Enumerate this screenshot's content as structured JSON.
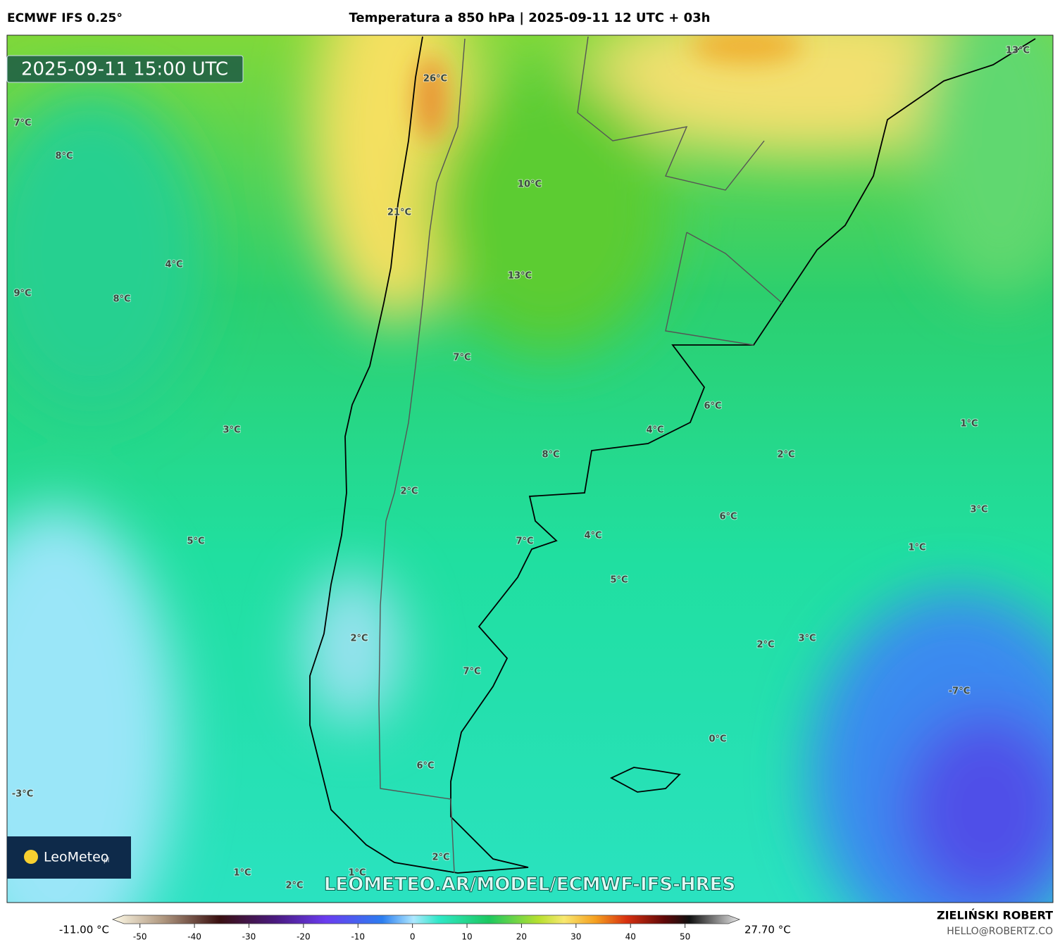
{
  "header": {
    "model": "ECMWF IFS 0.25°",
    "title": "Temperatura a 850 hPa | 2025-09-11 12 UTC + 03h"
  },
  "map": {
    "valid_time": "2025-09-11 15:00 UTC",
    "labels": [
      "13°C",
      "26°C",
      "7°C",
      "8°C",
      "10°C",
      "21°C",
      "4°C",
      "13°C",
      "9°C",
      "8°C",
      "7°C",
      "6°C",
      "1°C",
      "3°C",
      "4°C",
      "8°C",
      "2°C",
      "2°C",
      "3°C",
      "6°C",
      "4°C",
      "7°C",
      "5°C",
      "1°C",
      "5°C",
      "2°C",
      "3°C",
      "2°C",
      "7°C",
      "-7°C",
      "0°C",
      "6°C",
      "-3°C",
      "2°C",
      "1°C",
      "1°C",
      "2°C"
    ],
    "logo": {
      "name": "LeoMeteo",
      "suffix": "pl"
    },
    "watermark": "LEOMETEO.AR/MODEL/ECMWF-IFS-HRES"
  },
  "colorbar": {
    "min_label": "-11.00 °C",
    "max_label": "27.70 °C",
    "lim": [
      -55,
      60
    ],
    "ticks": [
      -50,
      -40,
      -30,
      -20,
      -10,
      0,
      10,
      20,
      30,
      40,
      50
    ]
  },
  "credits": {
    "author": "ZIELIŃSKI ROBERT",
    "contact": "HELLO@ROBERTZ.CO"
  }
}
